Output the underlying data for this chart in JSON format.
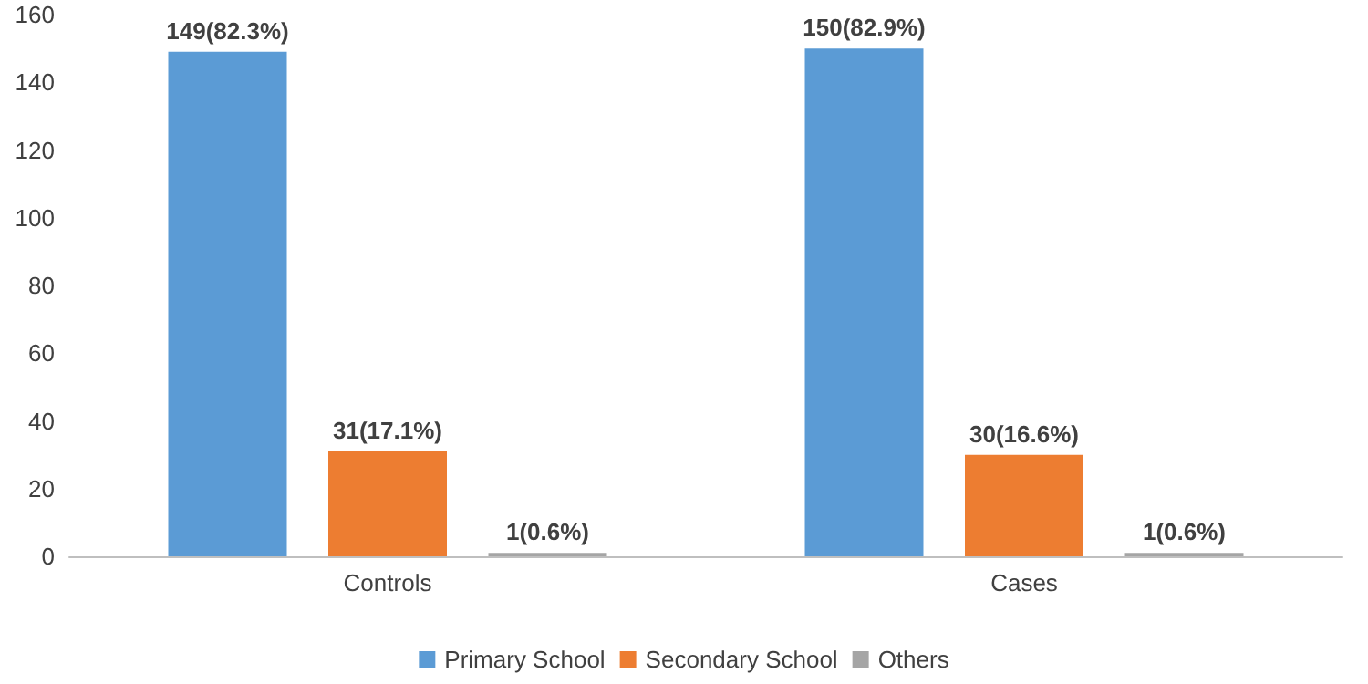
{
  "chart_data": {
    "type": "bar",
    "categories": [
      "Controls",
      "Cases"
    ],
    "series": [
      {
        "name": "Primary School",
        "color": "#5b9bd5",
        "values": [
          149,
          150
        ],
        "value_labels": [
          "149(82.3%)",
          "150(82.9%)"
        ]
      },
      {
        "name": "Secondary School",
        "color": "#ed7d31",
        "values": [
          31,
          30
        ],
        "value_labels": [
          "31(17.1%)",
          "30(16.6%)"
        ]
      },
      {
        "name": "Others",
        "color": "#a5a5a5",
        "values": [
          1,
          1
        ],
        "value_labels": [
          "1(0.6%)",
          "1(0.6%)"
        ]
      }
    ],
    "ylim": [
      0,
      160
    ],
    "yticks": [
      0,
      20,
      40,
      60,
      80,
      100,
      120,
      140,
      160
    ],
    "grid": false,
    "legend": "bottom"
  }
}
